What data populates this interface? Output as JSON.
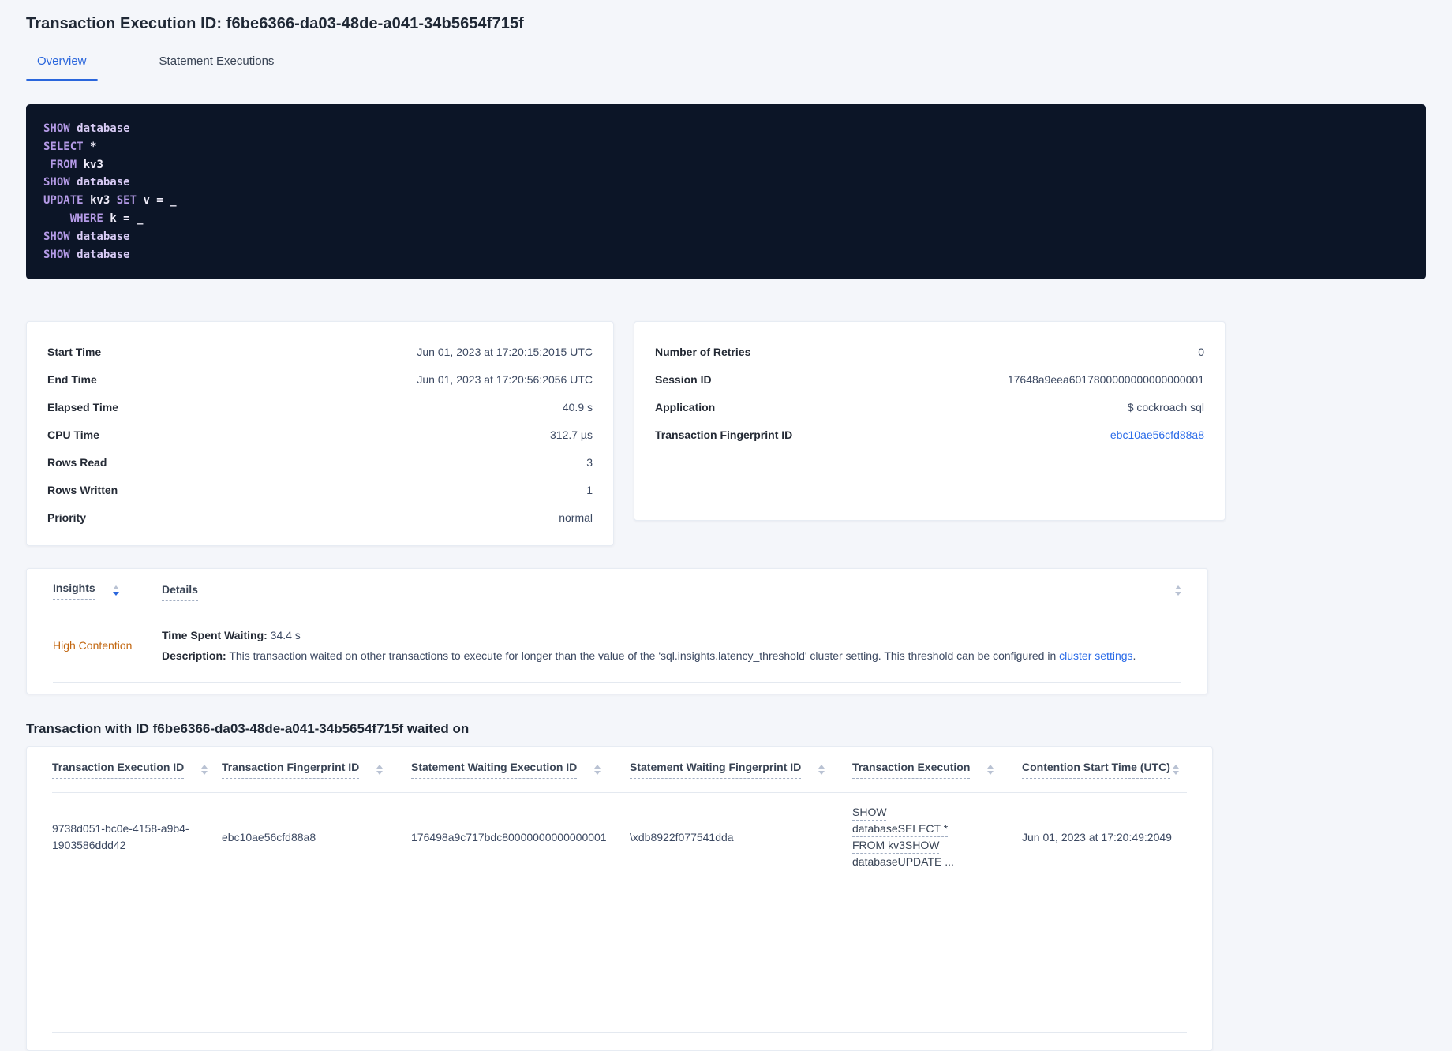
{
  "title": "Transaction Execution ID: f6be6366-da03-48de-a041-34b5654f715f",
  "tabs": [
    {
      "label": "Overview"
    },
    {
      "label": "Statement Executions"
    }
  ],
  "sql": {
    "lines": [
      [
        {
          "c": "k",
          "t": "SHOW"
        },
        {
          "c": "d",
          "t": " database"
        }
      ],
      [
        {
          "c": "k",
          "t": "SELECT"
        },
        {
          "c": "p",
          "t": " *"
        }
      ],
      [
        {
          "c": "k",
          "t": " FROM"
        },
        {
          "c": "p",
          "t": " kv3"
        }
      ],
      [
        {
          "c": "k",
          "t": "SHOW"
        },
        {
          "c": "d",
          "t": " database"
        }
      ],
      [
        {
          "c": "k",
          "t": "UPDATE"
        },
        {
          "c": "p",
          "t": " kv3"
        },
        {
          "c": "k",
          "t": " SET"
        },
        {
          "c": "p",
          "t": " v = _"
        }
      ],
      [
        {
          "c": "k",
          "t": "    WHERE"
        },
        {
          "c": "p",
          "t": " k = _"
        }
      ],
      [
        {
          "c": "k",
          "t": "SHOW"
        },
        {
          "c": "d",
          "t": " database"
        }
      ],
      [
        {
          "c": "k",
          "t": "SHOW"
        },
        {
          "c": "d",
          "t": " database"
        }
      ]
    ]
  },
  "summary_left": {
    "rows": [
      {
        "label": "Start Time",
        "value": "Jun 01, 2023 at 17:20:15:2015 UTC"
      },
      {
        "label": "End Time",
        "value": "Jun 01, 2023 at 17:20:56:2056 UTC"
      },
      {
        "label": "Elapsed Time",
        "value": "40.9 s"
      },
      {
        "label": "CPU Time",
        "value": "312.7 µs"
      },
      {
        "label": "Rows Read",
        "value": "3"
      },
      {
        "label": "Rows Written",
        "value": "1"
      },
      {
        "label": "Priority",
        "value": "normal"
      }
    ]
  },
  "summary_right": {
    "rows": [
      {
        "label": "Number of Retries",
        "value": "0"
      },
      {
        "label": "Session ID",
        "value": "17648a9eea6017800000000000000001"
      },
      {
        "label": "Application",
        "value": "$ cockroach sql"
      },
      {
        "label": "Transaction Fingerprint ID",
        "value": "ebc10ae56cfd88a8",
        "link": true
      }
    ]
  },
  "insights": {
    "col_insights": "Insights",
    "col_details": "Details",
    "insight_label": "High Contention",
    "waiting_label": "Time Spent Waiting:",
    "waiting_value": " 34.4 s",
    "desc_label": "Description:",
    "desc_text": " This transaction waited on other transactions to execute for longer than the value of the 'sql.insights.latency_threshold' cluster setting. This threshold can be configured in ",
    "desc_link": "cluster settings",
    "desc_end": "."
  },
  "waited": {
    "heading": "Transaction with ID f6be6366-da03-48de-a041-34b5654f715f waited on",
    "columns": [
      "Transaction Execution ID",
      "Transaction Fingerprint ID",
      "Statement Waiting Execution ID",
      "Statement Waiting Fingerprint ID",
      "Transaction Execution",
      "Contention Start Time (UTC)"
    ],
    "row": {
      "execution_id": "9738d051-bc0e-4158-a9b4-1903586ddd42",
      "fingerprint_id": "ebc10ae56cfd88a8",
      "stmt_waiting_execution_id": "176498a9c717bdc80000000000000001",
      "stmt_waiting_fingerprint_id": "\\xdb8922f077541dda",
      "transaction_execution": "SHOW databaseSELECT * FROM kv3SHOW databaseUPDATE ...",
      "contention_start": "Jun 01, 2023 at 17:20:49:2049"
    }
  },
  "colors": {
    "accent_blue": "#2a66dc",
    "link_blue": "#2a6be8",
    "insight_orange": "#c2660f",
    "code_background": "#0c1527",
    "code_keyword": "#b49ae6",
    "code_keyword_secondary": "#d8cbf5",
    "code_text": "#f0edfa",
    "page_background": "#f4f6fa"
  }
}
